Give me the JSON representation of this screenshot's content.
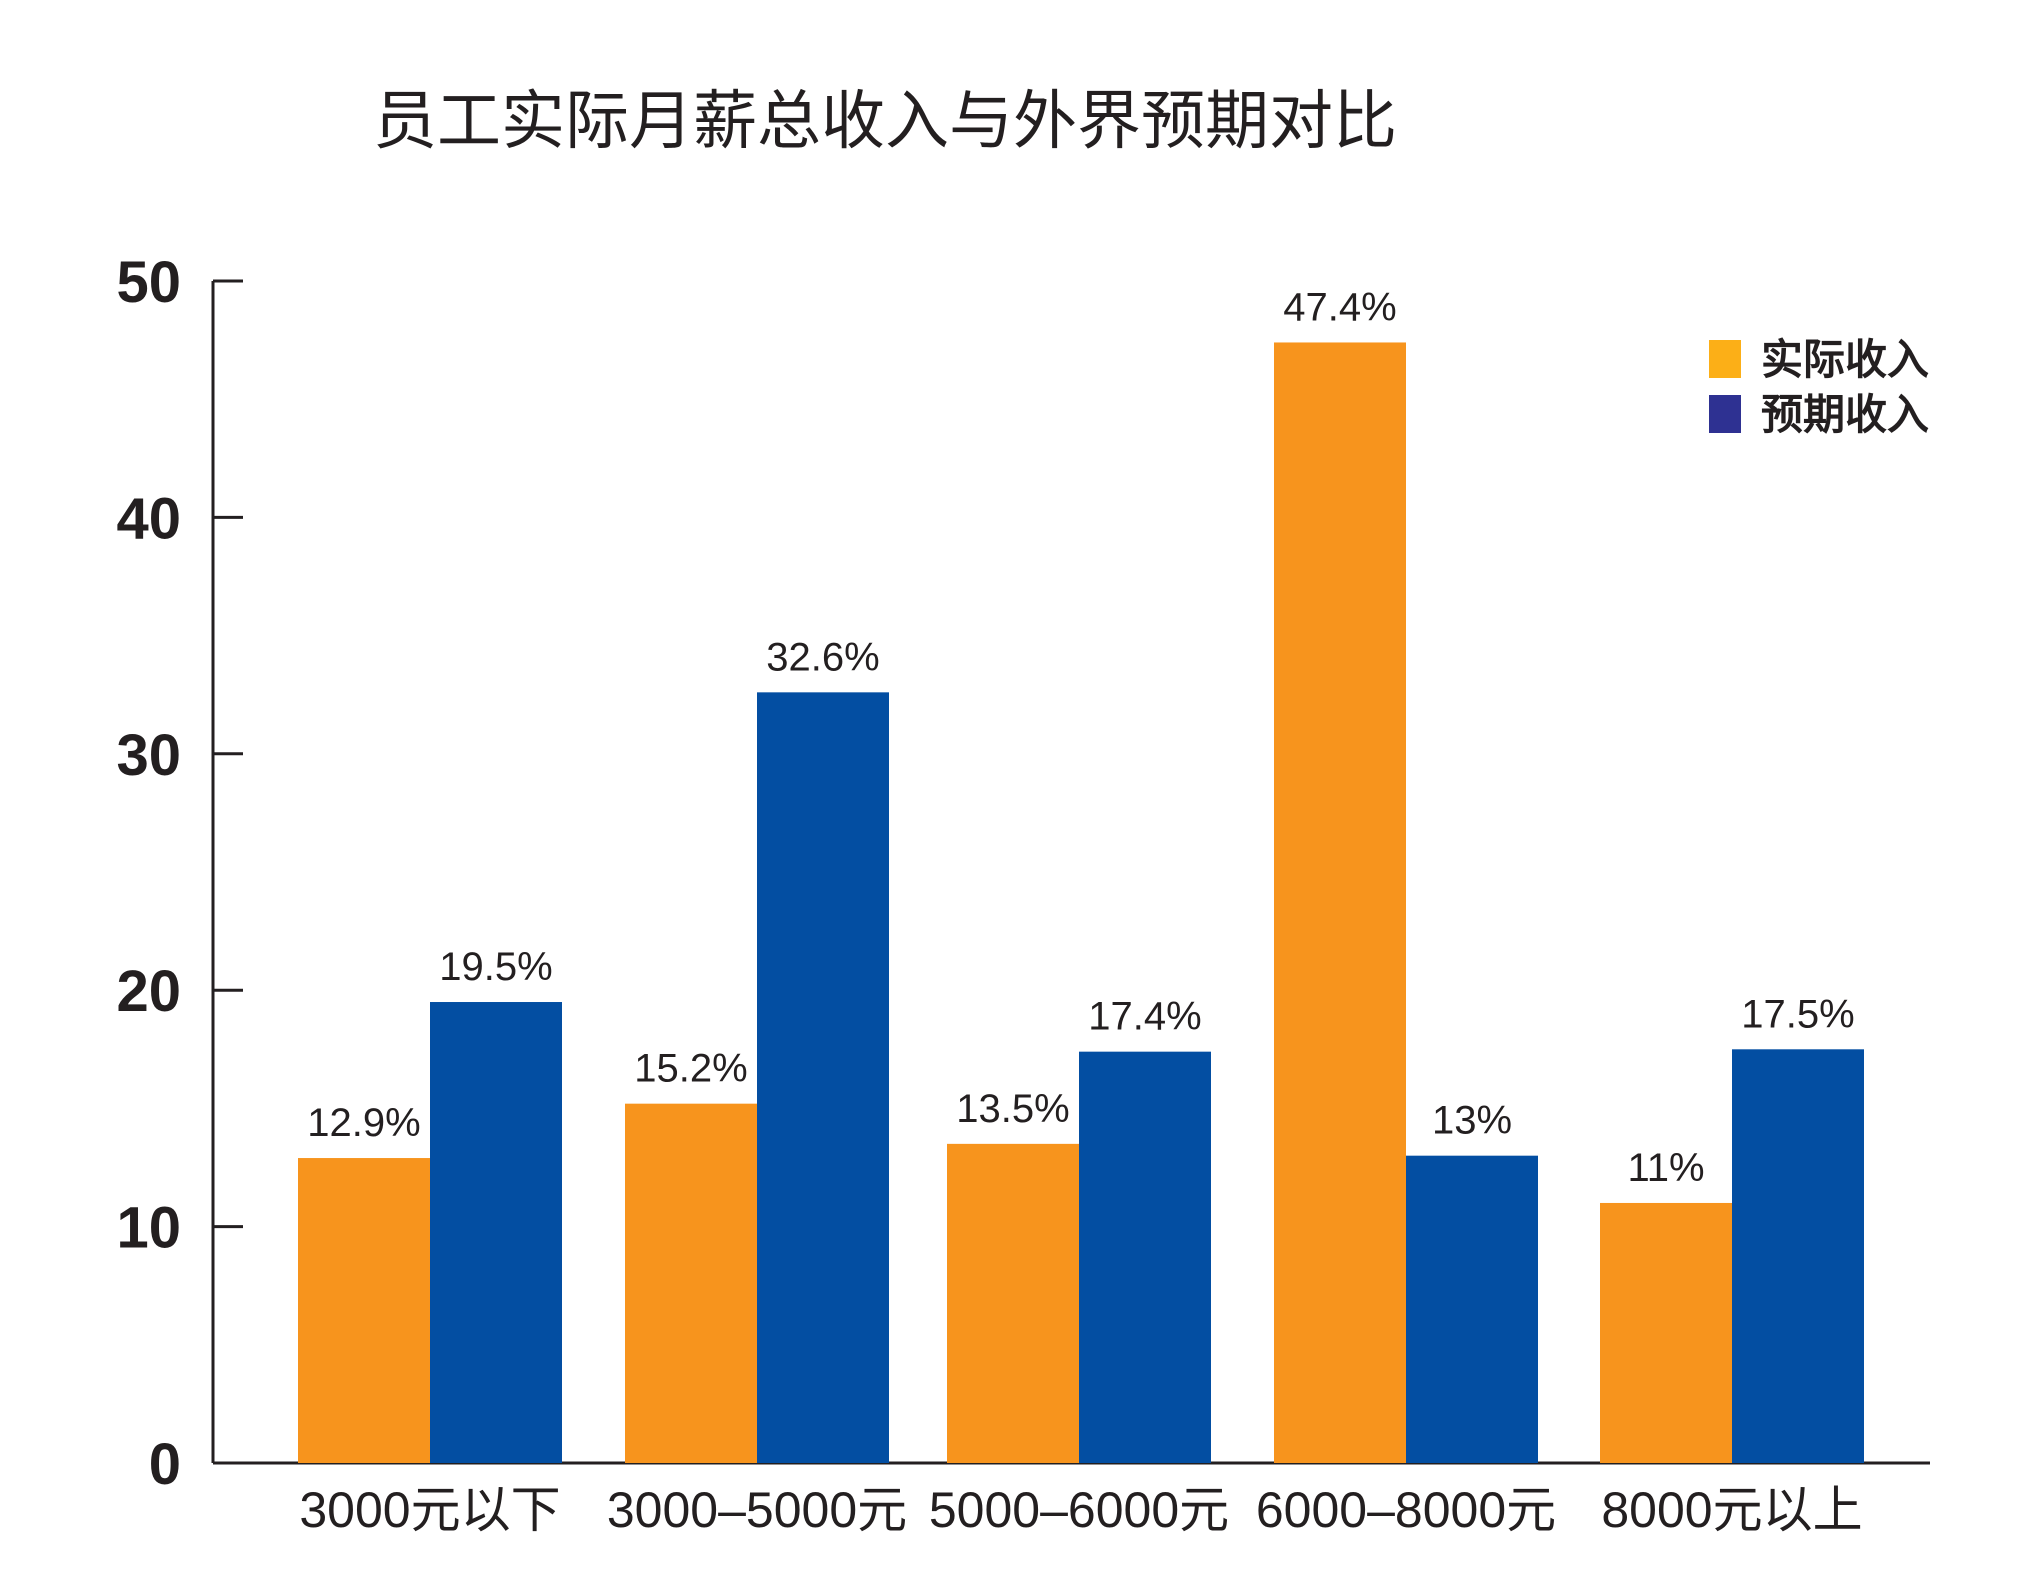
{
  "chart_data": {
    "type": "bar",
    "title": "员工实际月薪总收入与外界预期对比",
    "xlabel": "",
    "ylabel": "",
    "ylim": [
      0,
      50
    ],
    "yticks": [
      "0",
      "10",
      "20",
      "30",
      "40",
      "50"
    ],
    "categories": [
      "3000元以下",
      "3000–5000元",
      "5000–6000元",
      "6000–8000元",
      "8000元以上"
    ],
    "series": [
      {
        "name": "实际收入",
        "color": "#f7941d",
        "values": [
          12.9,
          15.2,
          13.5,
          47.4,
          11
        ],
        "labels": [
          "12.9%",
          "15.2%",
          "13.5%",
          "47.4%",
          "11%"
        ]
      },
      {
        "name": "预期收入",
        "color": "#034ea2",
        "values": [
          19.5,
          32.6,
          17.4,
          13,
          17.5
        ],
        "labels": [
          "19.5%",
          "32.6%",
          "17.4%",
          "13%",
          "17.5%"
        ]
      }
    ],
    "legend": {
      "position": "top-right",
      "swatch_colors": [
        "#fcaf17",
        "#2e3192"
      ]
    },
    "grid": false
  }
}
